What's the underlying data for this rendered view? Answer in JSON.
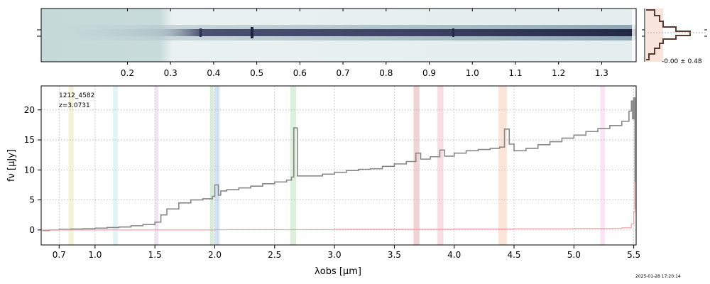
{
  "chart_data": [
    {
      "id": "spectrum2d",
      "type": "heatmap",
      "description_axis": "wavelength",
      "xlabel": "",
      "xticks": [
        {
          "value": 0.2,
          "label": "0.2"
        },
        {
          "value": 0.3,
          "label": "0.3"
        },
        {
          "value": 0.4,
          "label": "0.4"
        },
        {
          "value": 0.5,
          "label": "0.5"
        },
        {
          "value": 0.6,
          "label": "0.6"
        },
        {
          "value": 0.7,
          "label": "0.7"
        },
        {
          "value": 0.8,
          "label": "0.8"
        },
        {
          "value": 0.9,
          "label": "0.9"
        },
        {
          "value": 1.0,
          "label": "1.0"
        },
        {
          "value": 1.1,
          "label": "1.1"
        },
        {
          "value": 1.2,
          "label": "1.2"
        },
        {
          "value": 1.3,
          "label": "1.3"
        }
      ],
      "xlim": [
        0.0,
        1.38
      ],
      "colors": {
        "low": "#c9dcdc",
        "high": "#2a2f4f"
      }
    },
    {
      "id": "profile",
      "type": "line",
      "annotation": "-0.00 ± 0.48",
      "colors": {
        "line": "#5a3a30",
        "fill": "#f4c4b0"
      }
    },
    {
      "id": "spectrum1d",
      "type": "line",
      "xlabel": "λobs [μm]",
      "ylabel": "fν [μJy]",
      "xlim": [
        0.55,
        5.52
      ],
      "ylim": [
        -2.5,
        24
      ],
      "xticks": [
        {
          "value": 0.7,
          "label": "0.7"
        },
        {
          "value": 1.0,
          "label": "1.0"
        },
        {
          "value": 1.5,
          "label": "1.5"
        },
        {
          "value": 2.0,
          "label": "2.0"
        },
        {
          "value": 2.5,
          "label": "2.5"
        },
        {
          "value": 3.0,
          "label": "3.0"
        },
        {
          "value": 3.5,
          "label": "3.5"
        },
        {
          "value": 4.0,
          "label": "4.0"
        },
        {
          "value": 4.5,
          "label": "4.5"
        },
        {
          "value": 5.0,
          "label": "5.0"
        },
        {
          "value": 5.5,
          "label": "5.5"
        }
      ],
      "yticks": [
        0,
        5,
        10,
        15,
        20
      ],
      "grid": true,
      "annotations": [
        "1212_4582",
        "z=3.0731"
      ],
      "series": [
        {
          "color": "#888888",
          "x": [
            0.56,
            0.62,
            0.7,
            0.8,
            0.9,
            1.0,
            1.1,
            1.2,
            1.3,
            1.4,
            1.5,
            1.55,
            1.6,
            1.7,
            1.8,
            1.9,
            1.98,
            2.0,
            2.03,
            2.05,
            2.1,
            2.2,
            2.3,
            2.4,
            2.5,
            2.6,
            2.64,
            2.66,
            2.69,
            2.75,
            2.9,
            3.0,
            3.1,
            3.2,
            3.3,
            3.4,
            3.5,
            3.6,
            3.68,
            3.72,
            3.8,
            3.88,
            3.92,
            4.0,
            4.1,
            4.2,
            4.3,
            4.38,
            4.42,
            4.46,
            4.5,
            4.6,
            4.7,
            4.8,
            4.9,
            5.0,
            5.1,
            5.2,
            5.3,
            5.4,
            5.46,
            5.48,
            5.49,
            5.5,
            5.51
          ],
          "y": [
            -0.1,
            0.0,
            0.1,
            0.15,
            0.2,
            0.3,
            0.4,
            0.5,
            0.7,
            0.9,
            1.3,
            2.5,
            3.5,
            4.5,
            5.0,
            5.2,
            5.6,
            7.5,
            5.8,
            6.5,
            6.7,
            7.0,
            7.3,
            7.7,
            8.0,
            8.3,
            8.8,
            17.0,
            9.0,
            9.0,
            9.3,
            9.6,
            9.9,
            10.1,
            10.2,
            10.6,
            11.0,
            11.4,
            12.8,
            11.8,
            12.2,
            13.3,
            12.3,
            12.8,
            13.2,
            13.4,
            13.6,
            13.8,
            16.8,
            14.3,
            13.2,
            13.6,
            14.2,
            14.7,
            15.3,
            15.8,
            16.4,
            16.9,
            17.4,
            18.1,
            19.8,
            21.5,
            18.5,
            22.0,
            3.5
          ]
        },
        {
          "color": "#f4a0a8",
          "x": [
            0.56,
            1.0,
            2.0,
            3.0,
            4.0,
            4.5,
            5.0,
            5.4,
            5.48,
            5.5,
            5.51
          ],
          "y": [
            0.0,
            0.0,
            0.05,
            0.1,
            0.15,
            0.2,
            0.25,
            0.35,
            1.0,
            3.0,
            8.0
          ]
        }
      ],
      "bands": [
        {
          "x": [
            0.78,
            0.82
          ],
          "color": "#e8e8b0"
        },
        {
          "x": [
            1.15,
            1.19
          ],
          "color": "#c8ecf0"
        },
        {
          "x": [
            1.5,
            1.53
          ],
          "color": "#e4d0ec"
        },
        {
          "x": [
            1.96,
            1.99
          ],
          "color": "#b0dcb8"
        },
        {
          "x": [
            2.0,
            2.04
          ],
          "color": "#a8c8e8"
        },
        {
          "x": [
            2.63,
            2.68
          ],
          "color": "#c0e4c0"
        },
        {
          "x": [
            3.66,
            3.71
          ],
          "color": "#e4b0b0"
        },
        {
          "x": [
            3.86,
            3.91
          ],
          "color": "#f0c0c8"
        },
        {
          "x": [
            4.37,
            4.44
          ],
          "color": "#f8d0b8"
        },
        {
          "x": [
            5.22,
            5.26
          ],
          "color": "#f8d0ec"
        }
      ]
    }
  ],
  "timestamp": "2025-01-28 17:20:14"
}
